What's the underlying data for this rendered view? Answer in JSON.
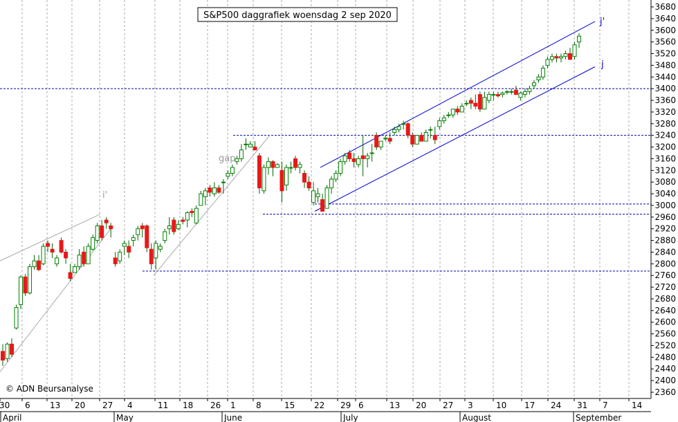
{
  "chart_data": {
    "type": "candlestick",
    "title": "S&P500 daggrafiek woensdag 2 sep 2020",
    "footer": "© ADN Beursanalyse",
    "ylim": [
      2340,
      3700
    ],
    "yticks": [
      2360,
      2400,
      2440,
      2480,
      2520,
      2560,
      2600,
      2640,
      2680,
      2720,
      2760,
      2800,
      2840,
      2880,
      2920,
      2960,
      3000,
      3040,
      3080,
      3120,
      3160,
      3200,
      3240,
      3280,
      3320,
      3360,
      3400,
      3440,
      3480,
      3520,
      3560,
      3600,
      3640,
      3680
    ],
    "x_day_labels": [
      "30",
      "6",
      "13",
      "20",
      "27",
      "4",
      "11",
      "18",
      "26",
      "1",
      "8",
      "15",
      "22",
      "29",
      "6",
      "13",
      "20",
      "27",
      "3",
      "10",
      "17",
      "24",
      "31",
      "7",
      "14"
    ],
    "months": [
      "April",
      "May",
      "June",
      "July",
      "August",
      "September"
    ],
    "horizontal_levels": [
      3400,
      3240,
      3005,
      2970,
      2775
    ],
    "annotations": {
      "gap": "gap",
      "i_prime": "i'",
      "j_prime": "j'",
      "j": "j"
    },
    "colors": {
      "up": "#ffffff",
      "down": "#e81818",
      "up_outline": "#008000",
      "channel": "#0000cc",
      "trend": "#aaaaaa",
      "grid": "#aaaaaa"
    },
    "candles": [
      [
        2500,
        2525,
        2450,
        2470
      ],
      [
        2475,
        2530,
        2465,
        2525
      ],
      [
        2525,
        2545,
        2480,
        2490
      ],
      [
        2580,
        2660,
        2575,
        2650
      ],
      [
        2660,
        2760,
        2645,
        2755
      ],
      [
        2755,
        2765,
        2690,
        2700
      ],
      [
        2700,
        2800,
        2695,
        2790
      ],
      [
        2790,
        2830,
        2780,
        2810
      ],
      [
        2810,
        2830,
        2775,
        2780
      ],
      [
        2800,
        2870,
        2795,
        2860
      ],
      [
        2870,
        2880,
        2840,
        2860
      ],
      [
        2850,
        2870,
        2820,
        2840
      ],
      [
        2800,
        2830,
        2790,
        2820
      ],
      [
        2880,
        2890,
        2835,
        2840
      ],
      [
        2840,
        2850,
        2800,
        2820
      ],
      [
        2770,
        2800,
        2740,
        2750
      ],
      [
        2770,
        2800,
        2770,
        2790
      ],
      [
        2790,
        2850,
        2780,
        2830
      ],
      [
        2840,
        2860,
        2790,
        2800
      ],
      [
        2800,
        2870,
        2800,
        2860
      ],
      [
        2850,
        2900,
        2845,
        2890
      ],
      [
        2880,
        2940,
        2870,
        2930
      ],
      [
        2930,
        2950,
        2880,
        2890
      ],
      [
        2950,
        2960,
        2920,
        2940
      ],
      [
        2930,
        2940,
        2890,
        2920
      ],
      [
        2820,
        2840,
        2790,
        2800
      ],
      [
        2810,
        2850,
        2800,
        2840
      ],
      [
        2860,
        2880,
        2830,
        2870
      ],
      [
        2860,
        2880,
        2820,
        2840
      ],
      [
        2880,
        2900,
        2860,
        2890
      ],
      [
        2900,
        2930,
        2880,
        2920
      ],
      [
        2930,
        2940,
        2890,
        2920
      ],
      [
        2930,
        2935,
        2840,
        2855
      ],
      [
        2850,
        2870,
        2780,
        2800
      ],
      [
        2820,
        2880,
        2780,
        2870
      ],
      [
        2850,
        2870,
        2840,
        2860
      ],
      [
        2880,
        2920,
        2870,
        2910
      ],
      [
        2920,
        2960,
        2900,
        2930
      ],
      [
        2950,
        2960,
        2900,
        2910
      ],
      [
        2920,
        2950,
        2915,
        2935
      ],
      [
        2950,
        2960,
        2935,
        2945
      ],
      [
        2950,
        2980,
        2925,
        2975
      ],
      [
        2980,
        2990,
        2960,
        2975
      ],
      [
        2940,
        3000,
        2935,
        2990
      ],
      [
        3000,
        3050,
        3000,
        3040
      ],
      [
        3030,
        3060,
        3000,
        3050
      ],
      [
        3060,
        3070,
        3030,
        3045
      ],
      [
        3040,
        3080,
        3030,
        3060
      ],
      [
        3060,
        3070,
        3040,
        3045
      ],
      [
        3080,
        3090,
        3040,
        3080
      ],
      [
        3100,
        3120,
        3090,
        3110
      ],
      [
        3110,
        3140,
        3100,
        3130
      ],
      [
        3150,
        3170,
        3140,
        3160
      ],
      [
        3160,
        3210,
        3150,
        3190
      ],
      [
        3210,
        3230,
        3190,
        3210
      ],
      [
        3200,
        3220,
        3200,
        3210
      ],
      [
        3200,
        3220,
        3190,
        3190
      ],
      [
        3170,
        3180,
        3040,
        3060
      ],
      [
        3050,
        3140,
        3040,
        3130
      ],
      [
        3130,
        3165,
        3105,
        3150
      ],
      [
        3150,
        3155,
        3100,
        3130
      ],
      [
        3130,
        3145,
        3130,
        3140
      ],
      [
        3120,
        3150,
        3010,
        3050
      ],
      [
        3070,
        3140,
        3050,
        3130
      ],
      [
        3130,
        3150,
        3110,
        3130
      ],
      [
        3160,
        3170,
        3120,
        3130
      ],
      [
        3130,
        3150,
        3110,
        3140
      ],
      [
        3110,
        3120,
        3060,
        3080
      ],
      [
        3080,
        3100,
        3050,
        3060
      ],
      [
        3010,
        3080,
        3000,
        3050
      ],
      [
        3030,
        3060,
        3010,
        3040
      ],
      [
        3020,
        3040,
        2980,
        2980
      ],
      [
        2990,
        3070,
        2990,
        3060
      ],
      [
        3060,
        3100,
        3040,
        3090
      ],
      [
        3090,
        3120,
        3080,
        3110
      ],
      [
        3110,
        3160,
        3100,
        3150
      ],
      [
        3150,
        3180,
        3140,
        3170
      ],
      [
        3180,
        3190,
        3150,
        3160
      ],
      [
        3160,
        3180,
        3130,
        3150
      ],
      [
        3140,
        3170,
        3130,
        3160
      ],
      [
        3170,
        3240,
        3100,
        3160
      ],
      [
        3160,
        3180,
        3130,
        3170
      ],
      [
        3180,
        3210,
        3150,
        3180
      ],
      [
        3240,
        3250,
        3190,
        3200
      ],
      [
        3200,
        3220,
        3190,
        3220
      ],
      [
        3230,
        3240,
        3220,
        3230
      ],
      [
        3230,
        3250,
        3210,
        3220
      ],
      [
        3250,
        3270,
        3240,
        3260
      ],
      [
        3260,
        3280,
        3250,
        3270
      ],
      [
        3280,
        3290,
        3260,
        3280
      ],
      [
        3280,
        3285,
        3230,
        3240
      ],
      [
        3240,
        3250,
        3200,
        3210
      ],
      [
        3210,
        3240,
        3210,
        3240
      ],
      [
        3240,
        3250,
        3220,
        3220
      ],
      [
        3220,
        3260,
        3220,
        3250
      ],
      [
        3260,
        3270,
        3230,
        3260
      ],
      [
        3240,
        3270,
        3210,
        3225
      ],
      [
        3270,
        3300,
        3260,
        3290
      ],
      [
        3290,
        3310,
        3280,
        3300
      ],
      [
        3310,
        3320,
        3300,
        3310
      ],
      [
        3310,
        3330,
        3300,
        3330
      ],
      [
        3330,
        3340,
        3310,
        3320
      ],
      [
        3320,
        3350,
        3320,
        3340
      ],
      [
        3350,
        3360,
        3340,
        3350
      ],
      [
        3360,
        3370,
        3330,
        3350
      ],
      [
        3350,
        3380,
        3330,
        3340
      ],
      [
        3380,
        3390,
        3320,
        3330
      ],
      [
        3330,
        3390,
        3330,
        3370
      ],
      [
        3360,
        3390,
        3350,
        3380
      ],
      [
        3380,
        3390,
        3360,
        3380
      ],
      [
        3380,
        3390,
        3370,
        3375
      ],
      [
        3380,
        3390,
        3370,
        3385
      ],
      [
        3390,
        3395,
        3380,
        3390
      ],
      [
        3390,
        3400,
        3380,
        3390
      ],
      [
        3395,
        3410,
        3380,
        3380
      ],
      [
        3370,
        3390,
        3360,
        3385
      ],
      [
        3380,
        3400,
        3370,
        3390
      ],
      [
        3390,
        3410,
        3380,
        3400
      ],
      [
        3410,
        3430,
        3400,
        3420
      ],
      [
        3430,
        3450,
        3420,
        3440
      ],
      [
        3440,
        3480,
        3430,
        3470
      ],
      [
        3480,
        3510,
        3470,
        3500
      ],
      [
        3500,
        3520,
        3490,
        3510
      ],
      [
        3510,
        3520,
        3490,
        3505
      ],
      [
        3505,
        3520,
        3490,
        3510
      ],
      [
        3510,
        3530,
        3500,
        3520
      ],
      [
        3520,
        3540,
        3500,
        3500
      ],
      [
        3510,
        3560,
        3500,
        3550
      ],
      [
        3560,
        3590,
        3540,
        3580
      ]
    ]
  }
}
